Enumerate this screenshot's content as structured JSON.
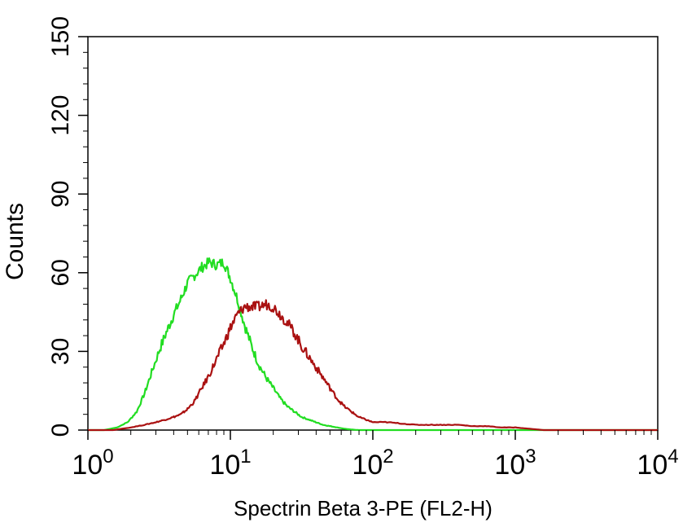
{
  "chart_data": {
    "type": "line",
    "title": "",
    "xlabel": "Spectrin Beta 3-PE (FL2-H)",
    "ylabel": "Counts",
    "xscale": "log",
    "xlim": [
      1,
      10000
    ],
    "ylim": [
      0,
      150
    ],
    "grid": false,
    "legend": "none",
    "x_ticks": [
      {
        "value": 1,
        "base": "10",
        "exp": "0"
      },
      {
        "value": 10,
        "base": "10",
        "exp": "1"
      },
      {
        "value": 100,
        "base": "10",
        "exp": "2"
      },
      {
        "value": 1000,
        "base": "10",
        "exp": "3"
      },
      {
        "value": 10000,
        "base": "10",
        "exp": "4"
      }
    ],
    "y_ticks": [
      {
        "value": 0,
        "label": "0"
      },
      {
        "value": 30,
        "label": "30"
      },
      {
        "value": 60,
        "label": "60"
      },
      {
        "value": 90,
        "label": "90"
      },
      {
        "value": 120,
        "label": "120"
      },
      {
        "value": 150,
        "label": "150"
      }
    ],
    "series": [
      {
        "color": "#22dd22",
        "x": [
          1,
          1.3,
          1.6,
          1.9,
          2.2,
          2.5,
          2.8,
          3.2,
          3.6,
          4.0,
          4.5,
          5.0,
          5.6,
          6.3,
          7.1,
          8.0,
          9.0,
          10.0,
          11.2,
          12.6,
          14.1,
          15.8,
          17.8,
          20.0,
          22.4,
          25.1,
          28.2,
          31.6,
          35.5,
          39.8,
          44.7,
          50.1,
          56.2,
          63.1,
          70.8,
          79.4,
          100,
          1000,
          10000
        ],
        "y": [
          0,
          0,
          1,
          3,
          7,
          14,
          22,
          31,
          38,
          44,
          50,
          56,
          59,
          62,
          64,
          63,
          64,
          58,
          50,
          40,
          32,
          25,
          20,
          16,
          12,
          9,
          7,
          5,
          4,
          3,
          2,
          1.5,
          1,
          0.5,
          0.2,
          0,
          0,
          0,
          0
        ]
      },
      {
        "color": "#aa1111",
        "x": [
          1,
          1.5,
          2.0,
          2.5,
          3.0,
          3.5,
          4.0,
          4.5,
          5.0,
          5.6,
          6.3,
          7.1,
          8.0,
          9.0,
          10.0,
          11.2,
          12.6,
          14.1,
          15.8,
          17.8,
          20.0,
          22.4,
          25.1,
          28.2,
          31.6,
          35.5,
          39.8,
          44.7,
          50.1,
          56.2,
          63.1,
          70.8,
          79.4,
          89.1,
          100,
          125.9,
          158.5,
          199.5,
          251.2,
          316.2,
          398.1,
          501.2,
          631.0,
          794.3,
          1000,
          1258.9,
          1584.9,
          10000
        ],
        "y": [
          0,
          0,
          1,
          2,
          3,
          4,
          5,
          6,
          8,
          11,
          16,
          21,
          27,
          33,
          39,
          44,
          47,
          47,
          47,
          48,
          47,
          44,
          41,
          37,
          32,
          28,
          24,
          20,
          16,
          12,
          9,
          7,
          5,
          4,
          3,
          3,
          2.5,
          2,
          2,
          2,
          2,
          1.5,
          1.5,
          1,
          1,
          0.5,
          0,
          0
        ]
      }
    ]
  }
}
